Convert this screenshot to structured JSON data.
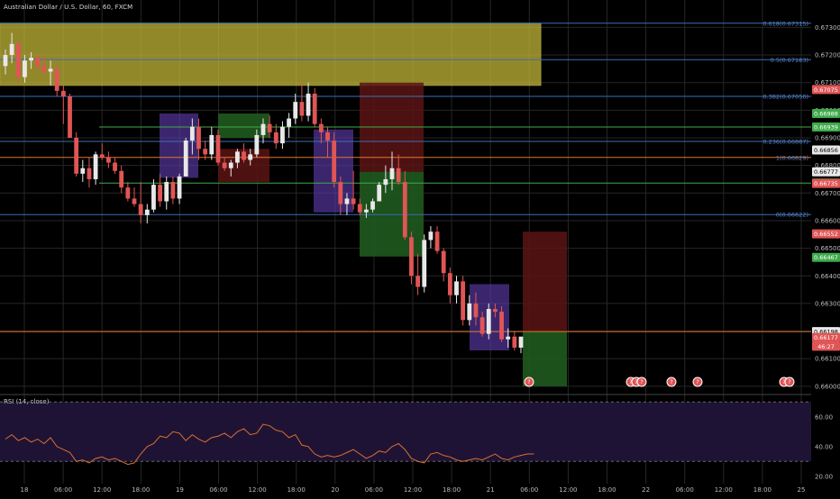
{
  "header": {
    "title": "Australian Dollar / U.S. Dollar, 60, FXCM"
  },
  "rsi": {
    "label": "RSI (14, close)",
    "levels": [
      60,
      40,
      20
    ]
  },
  "colors": {
    "bull": "#e8e8e8",
    "bear": "#e05555",
    "grid": "#262626",
    "fib": "#3a6fb5",
    "green_line": "#3faa4a",
    "orange_line": "#e2772e",
    "red_line": "#b03030",
    "yellow_zone": "#c2b638",
    "purple_box": "#5b3aa8",
    "rsi_line": "#d87030",
    "rsi_bg": "#1f1335"
  },
  "axis": {
    "price_ticks": [
      "0.67300",
      "0.67200",
      "0.67100",
      "0.67000",
      "0.66900",
      "0.66800",
      "0.66700",
      "0.66600",
      "0.66500",
      "0.66400",
      "0.66300",
      "0.66200",
      "0.66100",
      "0.66000"
    ],
    "rsi_ticks": [
      "60.00",
      "40.00",
      "20.00"
    ],
    "time_ticks": [
      "18",
      "06:00",
      "12:00",
      "18:00",
      "19",
      "06:00",
      "12:00",
      "18:00",
      "20",
      "06:00",
      "12:00",
      "18:00",
      "21",
      "06:00",
      "12:00",
      "18:00",
      "22",
      "06:00",
      "12:00",
      "18:00",
      "25"
    ]
  },
  "price_badges": [
    {
      "text": "0.67075",
      "color": "#e05555",
      "price": 0.67075
    },
    {
      "text": "0.66988",
      "color": "#3faa4a",
      "price": 0.66988
    },
    {
      "text": "0.66939",
      "color": "#3faa4a",
      "price": 0.66939
    },
    {
      "text": "0.66856",
      "color": "#e8e8e8",
      "price": 0.66856
    },
    {
      "text": "0.66777",
      "color": "#e8e8e8",
      "price": 0.66777
    },
    {
      "text": "0.66736",
      "color": "#3faa4a",
      "price": 0.66736
    },
    {
      "text": "0.66735",
      "color": "#e05555",
      "price": 0.66735
    },
    {
      "text": "0.66552",
      "color": "#e05555",
      "price": 0.66552
    },
    {
      "text": "0.66467",
      "color": "#3faa4a",
      "price": 0.66467
    },
    {
      "text": "0.66198",
      "color": "#e8e8e8",
      "price": 0.66198
    },
    {
      "text": "0.66177",
      "color": "#e05555",
      "price": 0.66177
    },
    {
      "text": "46:27",
      "color": "#e05555",
      "price": 0.66145
    }
  ],
  "fib_labels": [
    {
      "text": "0.618(0.67315)",
      "price": 0.67315
    },
    {
      "text": "0.5(0.67183)",
      "price": 0.67183
    },
    {
      "text": "0.382(0.67050)",
      "price": 0.6705
    },
    {
      "text": "0.236(0.66887)",
      "price": 0.66887
    },
    {
      "text": "1(0.66829)",
      "price": 0.66829
    },
    {
      "text": "0(0.66622)",
      "price": 0.66622
    }
  ],
  "event_markers": [
    {
      "label": "?",
      "count": 1,
      "slot": 0
    },
    {
      "label": "?",
      "count": 3,
      "slot": 1
    },
    {
      "label": "?",
      "count": 1,
      "slot": 2
    },
    {
      "label": "?",
      "count": 1,
      "slot": 3
    },
    {
      "label": "?",
      "count": 2,
      "slot": 4
    }
  ],
  "chart_data": {
    "type": "candlestick",
    "title": "Australian Dollar / U.S. Dollar, 60, FXCM",
    "ylim": [
      0.6598,
      0.6736
    ],
    "candles": [
      {
        "o": 0.6716,
        "h": 0.6722,
        "l": 0.6713,
        "c": 0.672
      },
      {
        "o": 0.672,
        "h": 0.6728,
        "l": 0.6717,
        "c": 0.6724
      },
      {
        "o": 0.6724,
        "h": 0.6725,
        "l": 0.671,
        "c": 0.6712
      },
      {
        "o": 0.6712,
        "h": 0.672,
        "l": 0.671,
        "c": 0.6718
      },
      {
        "o": 0.6718,
        "h": 0.6721,
        "l": 0.6715,
        "c": 0.6719
      },
      {
        "o": 0.6719,
        "h": 0.672,
        "l": 0.6714,
        "c": 0.6716
      },
      {
        "o": 0.6716,
        "h": 0.672,
        "l": 0.6712,
        "c": 0.6714
      },
      {
        "o": 0.6714,
        "h": 0.6718,
        "l": 0.6709,
        "c": 0.6715
      },
      {
        "o": 0.6715,
        "h": 0.6716,
        "l": 0.6705,
        "c": 0.6707
      },
      {
        "o": 0.6707,
        "h": 0.6709,
        "l": 0.6695,
        "c": 0.6705
      },
      {
        "o": 0.6705,
        "h": 0.6706,
        "l": 0.669,
        "c": 0.669
      },
      {
        "o": 0.669,
        "h": 0.6692,
        "l": 0.6676,
        "c": 0.6677
      },
      {
        "o": 0.6677,
        "h": 0.6682,
        "l": 0.6674,
        "c": 0.6679
      },
      {
        "o": 0.6679,
        "h": 0.6683,
        "l": 0.6672,
        "c": 0.6675
      },
      {
        "o": 0.6675,
        "h": 0.6685,
        "l": 0.6673,
        "c": 0.6684
      },
      {
        "o": 0.6684,
        "h": 0.6688,
        "l": 0.6682,
        "c": 0.6683
      },
      {
        "o": 0.6683,
        "h": 0.6685,
        "l": 0.6679,
        "c": 0.6681
      },
      {
        "o": 0.6681,
        "h": 0.6683,
        "l": 0.6677,
        "c": 0.6678
      },
      {
        "o": 0.6678,
        "h": 0.668,
        "l": 0.667,
        "c": 0.6672
      },
      {
        "o": 0.6672,
        "h": 0.6674,
        "l": 0.6667,
        "c": 0.6668
      },
      {
        "o": 0.6668,
        "h": 0.6672,
        "l": 0.6665,
        "c": 0.6666
      },
      {
        "o": 0.6666,
        "h": 0.6674,
        "l": 0.6659,
        "c": 0.6662
      },
      {
        "o": 0.6662,
        "h": 0.6666,
        "l": 0.6659,
        "c": 0.6664
      },
      {
        "o": 0.6664,
        "h": 0.6675,
        "l": 0.6663,
        "c": 0.6673
      },
      {
        "o": 0.6673,
        "h": 0.6677,
        "l": 0.6665,
        "c": 0.6667
      },
      {
        "o": 0.6667,
        "h": 0.6676,
        "l": 0.6664,
        "c": 0.6674
      },
      {
        "o": 0.6674,
        "h": 0.6676,
        "l": 0.6666,
        "c": 0.6668
      },
      {
        "o": 0.6668,
        "h": 0.6677,
        "l": 0.6666,
        "c": 0.6676
      },
      {
        "o": 0.6676,
        "h": 0.669,
        "l": 0.6676,
        "c": 0.6689
      },
      {
        "o": 0.6689,
        "h": 0.6697,
        "l": 0.6684,
        "c": 0.6694
      },
      {
        "o": 0.6694,
        "h": 0.6697,
        "l": 0.6682,
        "c": 0.6686
      },
      {
        "o": 0.6686,
        "h": 0.6689,
        "l": 0.6682,
        "c": 0.6684
      },
      {
        "o": 0.6684,
        "h": 0.6694,
        "l": 0.6682,
        "c": 0.6691
      },
      {
        "o": 0.6691,
        "h": 0.6693,
        "l": 0.668,
        "c": 0.6681
      },
      {
        "o": 0.6681,
        "h": 0.6683,
        "l": 0.6678,
        "c": 0.6679
      },
      {
        "o": 0.6679,
        "h": 0.6682,
        "l": 0.6676,
        "c": 0.6681
      },
      {
        "o": 0.6681,
        "h": 0.6686,
        "l": 0.6679,
        "c": 0.6685
      },
      {
        "o": 0.6685,
        "h": 0.6688,
        "l": 0.6681,
        "c": 0.6682
      },
      {
        "o": 0.6682,
        "h": 0.6686,
        "l": 0.668,
        "c": 0.6684
      },
      {
        "o": 0.6684,
        "h": 0.6693,
        "l": 0.6683,
        "c": 0.6691
      },
      {
        "o": 0.6691,
        "h": 0.6697,
        "l": 0.6688,
        "c": 0.6695
      },
      {
        "o": 0.6695,
        "h": 0.6698,
        "l": 0.669,
        "c": 0.6692
      },
      {
        "o": 0.6692,
        "h": 0.6695,
        "l": 0.6686,
        "c": 0.6688
      },
      {
        "o": 0.6688,
        "h": 0.6696,
        "l": 0.6686,
        "c": 0.6694
      },
      {
        "o": 0.6694,
        "h": 0.6699,
        "l": 0.669,
        "c": 0.6697
      },
      {
        "o": 0.6697,
        "h": 0.6706,
        "l": 0.6695,
        "c": 0.6703
      },
      {
        "o": 0.6703,
        "h": 0.671,
        "l": 0.6696,
        "c": 0.6698
      },
      {
        "o": 0.6698,
        "h": 0.671,
        "l": 0.6696,
        "c": 0.6706
      },
      {
        "o": 0.6706,
        "h": 0.6708,
        "l": 0.6694,
        "c": 0.6695
      },
      {
        "o": 0.6695,
        "h": 0.6697,
        "l": 0.6688,
        "c": 0.6692
      },
      {
        "o": 0.6692,
        "h": 0.6694,
        "l": 0.6683,
        "c": 0.6689
      },
      {
        "o": 0.6689,
        "h": 0.6692,
        "l": 0.6672,
        "c": 0.6674
      },
      {
        "o": 0.6674,
        "h": 0.6676,
        "l": 0.6662,
        "c": 0.6666
      },
      {
        "o": 0.6666,
        "h": 0.667,
        "l": 0.6662,
        "c": 0.6668
      },
      {
        "o": 0.6668,
        "h": 0.6678,
        "l": 0.6664,
        "c": 0.6666
      },
      {
        "o": 0.6666,
        "h": 0.6668,
        "l": 0.6662,
        "c": 0.6663
      },
      {
        "o": 0.6663,
        "h": 0.6666,
        "l": 0.6661,
        "c": 0.6664
      },
      {
        "o": 0.6664,
        "h": 0.6668,
        "l": 0.6663,
        "c": 0.6667
      },
      {
        "o": 0.6667,
        "h": 0.6674,
        "l": 0.6667,
        "c": 0.6673
      },
      {
        "o": 0.6673,
        "h": 0.668,
        "l": 0.667,
        "c": 0.6675
      },
      {
        "o": 0.6675,
        "h": 0.6685,
        "l": 0.6671,
        "c": 0.6679
      },
      {
        "o": 0.6679,
        "h": 0.6684,
        "l": 0.6673,
        "c": 0.6674
      },
      {
        "o": 0.6674,
        "h": 0.6678,
        "l": 0.6653,
        "c": 0.6654
      },
      {
        "o": 0.6654,
        "h": 0.6656,
        "l": 0.6637,
        "c": 0.664
      },
      {
        "o": 0.664,
        "h": 0.6648,
        "l": 0.6633,
        "c": 0.6636
      },
      {
        "o": 0.6636,
        "h": 0.6655,
        "l": 0.6634,
        "c": 0.6653
      },
      {
        "o": 0.6653,
        "h": 0.6658,
        "l": 0.665,
        "c": 0.6656
      },
      {
        "o": 0.6656,
        "h": 0.6658,
        "l": 0.6648,
        "c": 0.6649
      },
      {
        "o": 0.6649,
        "h": 0.665,
        "l": 0.6638,
        "c": 0.6641
      },
      {
        "o": 0.6641,
        "h": 0.6643,
        "l": 0.663,
        "c": 0.6633
      },
      {
        "o": 0.6633,
        "h": 0.664,
        "l": 0.663,
        "c": 0.6638
      },
      {
        "o": 0.6638,
        "h": 0.664,
        "l": 0.6622,
        "c": 0.6624
      },
      {
        "o": 0.6624,
        "h": 0.6633,
        "l": 0.6622,
        "c": 0.663
      },
      {
        "o": 0.663,
        "h": 0.6634,
        "l": 0.6622,
        "c": 0.6625
      },
      {
        "o": 0.6625,
        "h": 0.6627,
        "l": 0.6618,
        "c": 0.6619
      },
      {
        "o": 0.6619,
        "h": 0.663,
        "l": 0.6617,
        "c": 0.6628
      },
      {
        "o": 0.6628,
        "h": 0.663,
        "l": 0.6625,
        "c": 0.6627
      },
      {
        "o": 0.6627,
        "h": 0.6629,
        "l": 0.6616,
        "c": 0.6617
      },
      {
        "o": 0.6617,
        "h": 0.6621,
        "l": 0.6614,
        "c": 0.6618
      },
      {
        "o": 0.6618,
        "h": 0.662,
        "l": 0.6613,
        "c": 0.6614
      },
      {
        "o": 0.6614,
        "h": 0.6617,
        "l": 0.6612,
        "c": 0.6618
      }
    ],
    "horizontal_lines": [
      {
        "price": 0.67315,
        "kind": "fib"
      },
      {
        "price": 0.67183,
        "kind": "fib"
      },
      {
        "price": 0.6705,
        "kind": "fib"
      },
      {
        "price": 0.66887,
        "kind": "fib"
      },
      {
        "price": 0.66622,
        "kind": "fib"
      },
      {
        "price": 0.66939,
        "kind": "green"
      },
      {
        "price": 0.66736,
        "kind": "green"
      },
      {
        "price": 0.66829,
        "kind": "orange"
      },
      {
        "price": 0.66198,
        "kind": "orange"
      }
    ],
    "rsi_values": [
      45,
      48,
      44,
      46,
      43,
      45,
      42,
      46,
      40,
      38,
      36,
      30,
      31,
      29,
      32,
      33,
      31,
      32,
      30,
      28,
      29,
      35,
      40,
      42,
      47,
      46,
      50,
      49,
      44,
      48,
      45,
      43,
      46,
      47,
      49,
      46,
      50,
      52,
      48,
      49,
      55,
      54,
      51,
      50,
      46,
      48,
      41,
      40,
      35,
      33,
      34,
      33,
      34,
      36,
      38,
      35,
      32,
      34,
      37,
      36,
      40,
      42,
      38,
      32,
      30,
      29,
      35,
      36,
      34,
      33,
      31,
      30,
      31,
      32,
      31,
      33,
      35,
      32,
      31,
      33,
      34,
      35,
      35
    ]
  }
}
